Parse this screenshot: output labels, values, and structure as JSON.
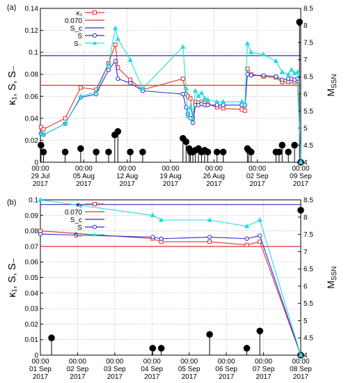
{
  "chart_data": [
    {
      "panel_label": "(a)",
      "type": "line",
      "xlabel": "",
      "ylabel": "κ₁, S, S₋",
      "y2label": "M",
      "y2label_sub": "SSN",
      "ylim": [
        0,
        0.14
      ],
      "y2lim": [
        4,
        8.5
      ],
      "x_range_days": [
        0,
        42
      ],
      "grid": true,
      "legend_placement": "top-left",
      "x_ticks": [
        {
          "d": 0,
          "time": "00:00",
          "date": "29 Jul",
          "year": "2017"
        },
        {
          "d": 7,
          "time": "00:00",
          "date": "05 Aug",
          "year": "2017"
        },
        {
          "d": 14,
          "time": "00:00",
          "date": "12 Aug",
          "year": "2017"
        },
        {
          "d": 21,
          "time": "00:00",
          "date": "19 Aug",
          "year": "2017"
        },
        {
          "d": 28,
          "time": "00:00",
          "date": "26 Aug",
          "year": "2017"
        },
        {
          "d": 35,
          "time": "00:00",
          "date": "02 Sep",
          "year": "2017"
        },
        {
          "d": 42,
          "time": "00:00",
          "date": "09 Sep",
          "year": "2017"
        }
      ],
      "y_ticks": [
        "0",
        "0.02",
        "0.04",
        "0.06",
        "0.08",
        "0.1",
        "0.12",
        "0.14"
      ],
      "y2_ticks": [
        "4",
        "4.5",
        "5",
        "5.5",
        "6",
        "6.5",
        "7",
        "7.5",
        "8",
        "8.5"
      ],
      "hlines": [
        {
          "name": "S_c",
          "value": 0.097,
          "color": "#2a2ad6"
        },
        {
          "name": "0.070",
          "value": 0.07,
          "color": "#e03030"
        }
      ],
      "series": [
        {
          "name": "κ₁",
          "color": "#e03030",
          "marker": "square",
          "points": [
            [
              0.1,
              0.032
            ],
            [
              0.5,
              0.03
            ],
            [
              4,
              0.04
            ],
            [
              6.5,
              0.068
            ],
            [
              9,
              0.066
            ],
            [
              11,
              0.09
            ],
            [
              12.1,
              0.107
            ],
            [
              12.5,
              0.086
            ],
            [
              14.5,
              0.075
            ],
            [
              16.5,
              0.066
            ],
            [
              23,
              0.076
            ],
            [
              23.5,
              0.062
            ],
            [
              23.8,
              0.06
            ],
            [
              24.2,
              0.058
            ],
            [
              24.6,
              0.04
            ],
            [
              25,
              0.055
            ],
            [
              25.5,
              0.054
            ],
            [
              26,
              0.055
            ],
            [
              26.5,
              0.054
            ],
            [
              27,
              0.053
            ],
            [
              28.5,
              0.05
            ],
            [
              29.5,
              0.049
            ],
            [
              32.5,
              0.048
            ],
            [
              33,
              0.047
            ],
            [
              33.4,
              0.085
            ],
            [
              34,
              0.08
            ],
            [
              36,
              0.078
            ],
            [
              38,
              0.077
            ],
            [
              39,
              0.073
            ],
            [
              40,
              0.073
            ],
            [
              40.5,
              0.074
            ],
            [
              41,
              0.073
            ],
            [
              41.5,
              0.074
            ],
            [
              42,
              0.0
            ]
          ]
        },
        {
          "name": "S",
          "color": "#2a2ad6",
          "marker": "circle",
          "points": [
            [
              0.1,
              0.026
            ],
            [
              0.5,
              0.025
            ],
            [
              4,
              0.035
            ],
            [
              6.5,
              0.059
            ],
            [
              9,
              0.062
            ],
            [
              11,
              0.084
            ],
            [
              12.1,
              0.092
            ],
            [
              12.5,
              0.076
            ],
            [
              14.5,
              0.072
            ],
            [
              16.5,
              0.065
            ],
            [
              23,
              0.062
            ],
            [
              23.5,
              0.05
            ],
            [
              23.8,
              0.044
            ],
            [
              24.2,
              0.04
            ],
            [
              24.6,
              0.036
            ],
            [
              25,
              0.052
            ],
            [
              25.5,
              0.052
            ],
            [
              26,
              0.053
            ],
            [
              26.5,
              0.052
            ],
            [
              27,
              0.052
            ],
            [
              28.5,
              0.052
            ],
            [
              29.5,
              0.052
            ],
            [
              32.5,
              0.052
            ],
            [
              33,
              0.052
            ],
            [
              33.4,
              0.08
            ],
            [
              34,
              0.079
            ],
            [
              36,
              0.079
            ],
            [
              38,
              0.078
            ],
            [
              39,
              0.075
            ],
            [
              40,
              0.076
            ],
            [
              40.5,
              0.076
            ],
            [
              41,
              0.075
            ],
            [
              41.5,
              0.076
            ],
            [
              42,
              0.0
            ]
          ]
        },
        {
          "name": "S₋",
          "color": "#22dddd",
          "marker": "triangle",
          "points": [
            [
              0.1,
              0.026
            ],
            [
              0.5,
              0.025
            ],
            [
              4,
              0.035
            ],
            [
              6.5,
              0.06
            ],
            [
              9,
              0.064
            ],
            [
              11,
              0.089
            ],
            [
              12.1,
              0.122
            ],
            [
              12.5,
              0.112
            ],
            [
              14.5,
              0.093
            ],
            [
              16.5,
              0.067
            ],
            [
              23,
              0.105
            ],
            [
              23.5,
              0.067
            ],
            [
              23.8,
              0.042
            ],
            [
              24.2,
              0.05
            ],
            [
              24.6,
              0.04
            ],
            [
              25,
              0.065
            ],
            [
              25.5,
              0.06
            ],
            [
              26,
              0.063
            ],
            [
              26.5,
              0.058
            ],
            [
              27,
              0.057
            ],
            [
              28.5,
              0.055
            ],
            [
              29.5,
              0.055
            ],
            [
              32.5,
              0.055
            ],
            [
              33,
              0.054
            ],
            [
              33.4,
              0.108
            ],
            [
              34,
              0.1
            ],
            [
              36,
              0.098
            ],
            [
              38,
              0.092
            ],
            [
              39,
              0.082
            ],
            [
              40,
              0.08
            ],
            [
              40.5,
              0.084
            ],
            [
              41,
              0.081
            ],
            [
              41.5,
              0.082
            ],
            [
              42,
              0.0
            ]
          ]
        }
      ],
      "stems_MSSN": [
        [
          0.1,
          4.5
        ],
        [
          0.5,
          4.3
        ],
        [
          4,
          4.3
        ],
        [
          6.5,
          4.4
        ],
        [
          9,
          4.3
        ],
        [
          11,
          4.3
        ],
        [
          12,
          4.8
        ],
        [
          12.5,
          4.9
        ],
        [
          14.5,
          4.3
        ],
        [
          16.5,
          4.3
        ],
        [
          23,
          4.7
        ],
        [
          23.5,
          4.6
        ],
        [
          24,
          4.4
        ],
        [
          24.2,
          4.3
        ],
        [
          24.6,
          4.3
        ],
        [
          25,
          4.35
        ],
        [
          25.5,
          4.4
        ],
        [
          26,
          4.3
        ],
        [
          26.5,
          4.35
        ],
        [
          27,
          4.3
        ],
        [
          28.5,
          4.3
        ],
        [
          29.5,
          4.3
        ],
        [
          33.4,
          4.4
        ],
        [
          33.6,
          4.35
        ],
        [
          34,
          4.3
        ],
        [
          38,
          4.3
        ],
        [
          38.5,
          4.3
        ],
        [
          39,
          4.5
        ],
        [
          40,
          4.3
        ],
        [
          41,
          4.5
        ],
        [
          41.8,
          8.1
        ],
        [
          42,
          4.0
        ]
      ]
    },
    {
      "panel_label": "(b)",
      "type": "line",
      "xlabel": "",
      "ylabel": "κ₁, S, S₋",
      "y2label": "M",
      "y2label_sub": "SSN",
      "ylim": [
        0,
        0.1
      ],
      "y2lim": [
        4,
        8.5
      ],
      "x_range_days": [
        0,
        7
      ],
      "grid": true,
      "legend_placement": "top-left",
      "x_ticks": [
        {
          "d": 0,
          "time": "00:00",
          "date": "01 Sep",
          "year": "2017"
        },
        {
          "d": 1,
          "time": "00:00",
          "date": "02 Sep",
          "year": "2017"
        },
        {
          "d": 2,
          "time": "00:00",
          "date": "03 Sep",
          "year": "2017"
        },
        {
          "d": 3,
          "time": "00:00",
          "date": "04 Sep",
          "year": "2017"
        },
        {
          "d": 4,
          "time": "00:00",
          "date": "05 Sep",
          "year": "2017"
        },
        {
          "d": 5,
          "time": "00:00",
          "date": "06 Sep",
          "year": "2017"
        },
        {
          "d": 6,
          "time": "00:00",
          "date": "07 Sep",
          "year": "2017"
        },
        {
          "d": 7,
          "time": "00:00",
          "date": "08 Sep",
          "year": "2017"
        }
      ],
      "y_ticks": [
        "0",
        "0.01",
        "0.02",
        "0.03",
        "0.04",
        "0.05",
        "0.06",
        "0.07",
        "0.08",
        "0.09",
        "0.1"
      ],
      "y2_ticks": [
        "4",
        "4.5",
        "5",
        "5.5",
        "6",
        "6.5",
        "7",
        "7.5",
        "8",
        "8.5"
      ],
      "hlines": [
        {
          "name": "S_c",
          "value": 0.097,
          "color": "#2a2ad6"
        },
        {
          "name": "0.070",
          "value": 0.07,
          "color": "#e03030"
        }
      ],
      "series": [
        {
          "name": "κ₁",
          "color": "#e03030",
          "marker": "square",
          "points": [
            [
              0,
              0.08
            ],
            [
              3.02,
              0.075
            ],
            [
              3.25,
              0.073
            ],
            [
              4.55,
              0.073
            ],
            [
              5.55,
              0.071
            ],
            [
              5.9,
              0.073
            ],
            [
              7,
              0.0
            ]
          ]
        },
        {
          "name": "S",
          "color": "#2a2ad6",
          "marker": "circle",
          "points": [
            [
              0,
              0.078
            ],
            [
              3.02,
              0.076
            ],
            [
              3.25,
              0.075
            ],
            [
              4.55,
              0.076
            ],
            [
              5.55,
              0.075
            ],
            [
              5.9,
              0.077
            ],
            [
              7,
              0.0
            ]
          ]
        },
        {
          "name": "S₋",
          "color": "#22dddd",
          "marker": "triangle",
          "points": [
            [
              0,
              0.1
            ],
            [
              3.02,
              0.09
            ],
            [
              3.25,
              0.087
            ],
            [
              4.55,
              0.087
            ],
            [
              5.55,
              0.083
            ],
            [
              5.9,
              0.087
            ],
            [
              7,
              0.0
            ]
          ]
        }
      ],
      "stems_MSSN": [
        [
          0.3,
          4.5
        ],
        [
          3.02,
          4.2
        ],
        [
          3.25,
          4.2
        ],
        [
          4.55,
          4.6
        ],
        [
          5.55,
          4.2
        ],
        [
          5.9,
          4.7
        ],
        [
          7,
          8.2
        ],
        [
          7,
          4.0
        ]
      ]
    }
  ]
}
